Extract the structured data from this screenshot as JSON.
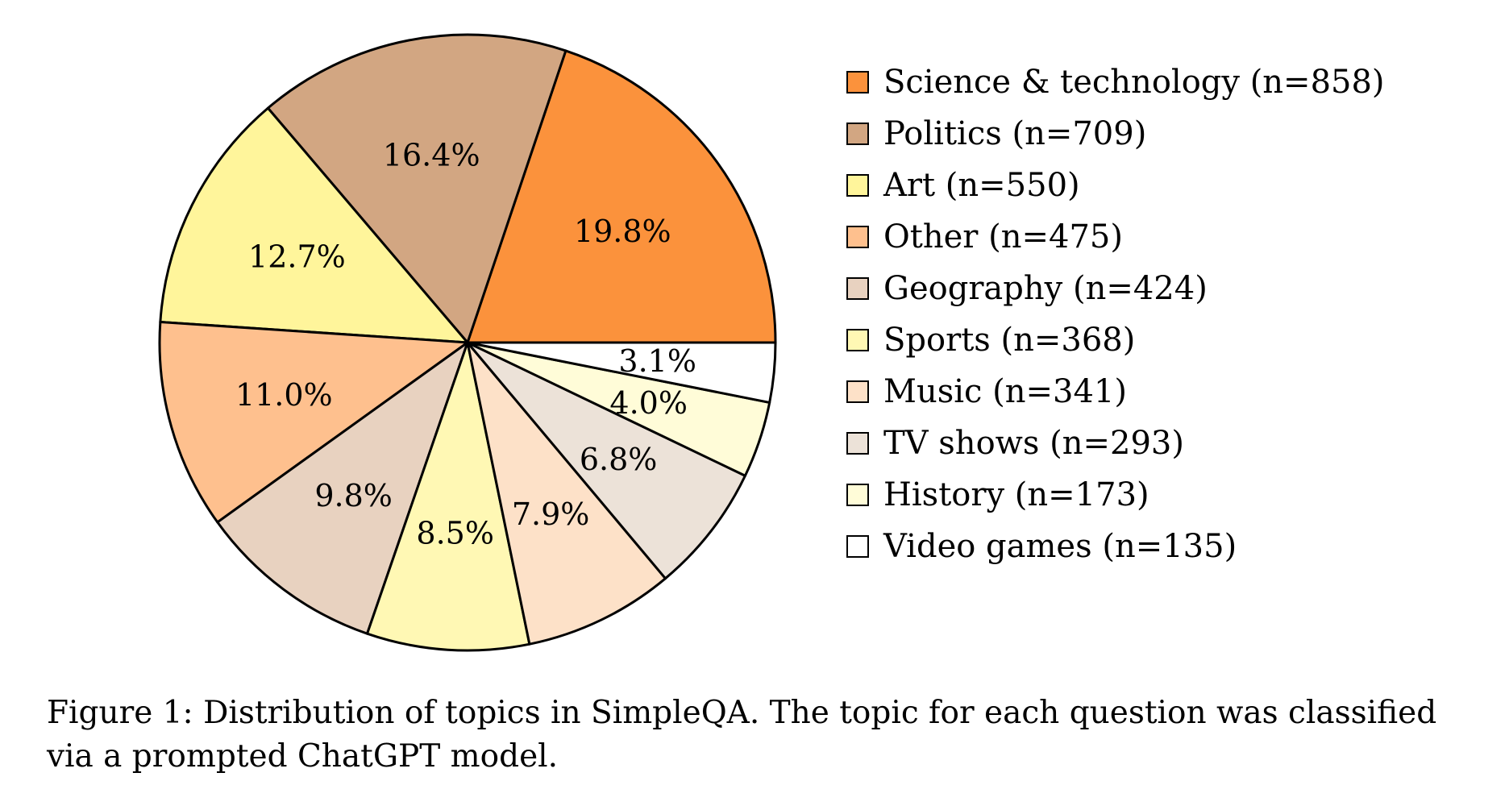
{
  "chart_data": {
    "type": "pie",
    "categories": [
      "Science & technology (n=858)",
      "Politics (n=709)",
      "Art (n=550)",
      "Other (n=475)",
      "Geography (n=424)",
      "Sports (n=368)",
      "Music (n=341)",
      "TV shows (n=293)",
      "History (n=173)",
      "Video games (n=135)"
    ],
    "values": [
      858,
      709,
      550,
      475,
      424,
      368,
      341,
      293,
      173,
      135
    ],
    "percent_labels": [
      "19.8%",
      "16.4%",
      "12.7%",
      "11.0%",
      "9.8%",
      "8.5%",
      "7.9%",
      "6.8%",
      "4.0%",
      "3.1%"
    ],
    "colors": [
      "#fb923c",
      "#d2a682",
      "#fff59b",
      "#fec08e",
      "#e8d2c0",
      "#fff8b4",
      "#fde1c8",
      "#ece2d8",
      "#fffcd8",
      "#ffffff"
    ],
    "start_angle_deg": 0,
    "direction": "counterclockwise",
    "legend": "right"
  },
  "caption": "Figure 1: Distribution of topics in SimpleQA. The topic for each question was classified via a prompted ChatGPT model."
}
